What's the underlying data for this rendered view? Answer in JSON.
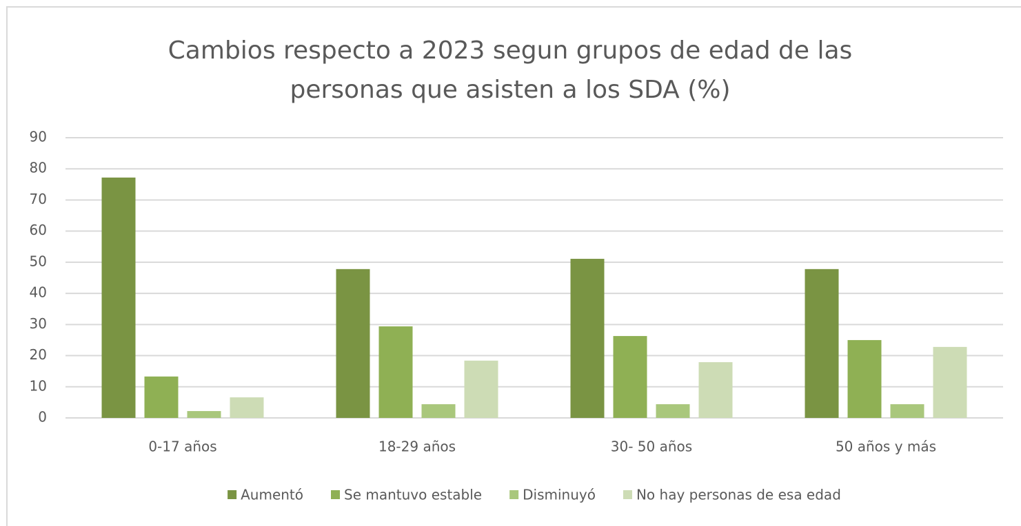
{
  "chart_data": {
    "type": "bar",
    "title": [
      "Cambios respecto a 2023 segun grupos de edad de las",
      "personas que asisten a los SDA (%)"
    ],
    "categories": [
      "0-17 años",
      "18-29 años",
      "30- 50 años",
      "50 años y más"
    ],
    "series": [
      {
        "name": "Aumentó",
        "color": "#7a9443",
        "values": [
          77.2,
          47.8,
          51.1,
          47.8
        ]
      },
      {
        "name": "Se mantuvo estable",
        "color": "#8fb054",
        "values": [
          13.3,
          29.4,
          26.3,
          25.0
        ]
      },
      {
        "name": "Disminuyó",
        "color": "#a9c77c",
        "values": [
          2.2,
          4.4,
          4.4,
          4.4
        ]
      },
      {
        "name": "No hay personas de esa edad",
        "color": "#cddcb5",
        "values": [
          6.6,
          18.4,
          17.9,
          22.8
        ]
      }
    ],
    "ylim": [
      0,
      90
    ],
    "yticks": [
      0,
      10,
      20,
      30,
      40,
      50,
      60,
      70,
      80,
      90
    ],
    "grid": true,
    "legend": "bottom"
  }
}
